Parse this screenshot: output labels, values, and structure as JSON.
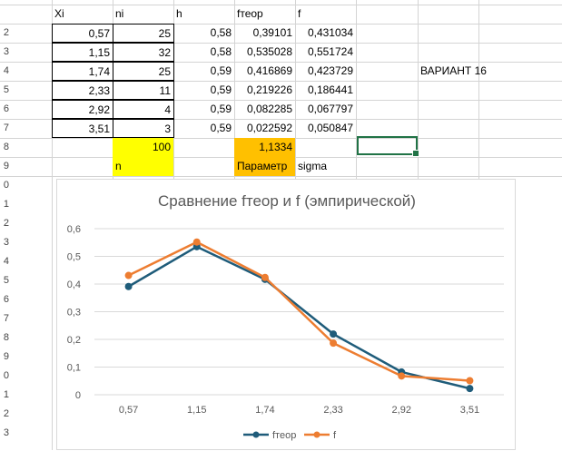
{
  "headers": {
    "xi": "Xi",
    "ni": "ni",
    "h": "h",
    "ftheor": "fтеор",
    "f": "f"
  },
  "rows": [
    {
      "xi": "0,57",
      "ni": "25",
      "h": "0,58",
      "ftheor": "0,39101",
      "f": "0,431034"
    },
    {
      "xi": "1,15",
      "ni": "32",
      "h": "0,58",
      "ftheor": "0,535028",
      "f": "0,551724"
    },
    {
      "xi": "1,74",
      "ni": "25",
      "h": "0,59",
      "ftheor": "0,416869",
      "f": "0,423729"
    },
    {
      "xi": "2,33",
      "ni": "11",
      "h": "0,59",
      "ftheor": "0,219226",
      "f": "0,186441"
    },
    {
      "xi": "2,92",
      "ni": "4",
      "h": "0,59",
      "ftheor": "0,082285",
      "f": "0,067797"
    },
    {
      "xi": "3,51",
      "ni": "3",
      "h": "0,59",
      "ftheor": "0,022592",
      "f": "0,050847"
    }
  ],
  "variant_label": "ВАРИАНТ 16",
  "sum_n": "100",
  "sigma_value": "1,1334",
  "label_n": "n",
  "label_param": "Параметр",
  "label_sigma": "sigma",
  "row_numbers": [
    "2",
    "3",
    "4",
    "5",
    "6",
    "7",
    "8",
    "9",
    "0",
    "1",
    "2",
    "3",
    "4",
    "5",
    "6",
    "7",
    "8",
    "9",
    "0",
    "1",
    "2",
    "3"
  ],
  "chart_data": {
    "type": "line",
    "title": "Сравнение fтеор и f (эмпирической)",
    "categories": [
      "0,57",
      "1,15",
      "1,74",
      "2,33",
      "2,92",
      "3,51"
    ],
    "y_ticks": [
      "0",
      "0,1",
      "0,2",
      "0,3",
      "0,4",
      "0,5",
      "0,6"
    ],
    "ylim": [
      0,
      0.6
    ],
    "grid": true,
    "legend_position": "bottom",
    "series": [
      {
        "name": "fтеор",
        "color": "#1f5c7a",
        "values": [
          0.39101,
          0.535028,
          0.416869,
          0.219226,
          0.082285,
          0.022592
        ]
      },
      {
        "name": "f",
        "color": "#ed7d31",
        "values": [
          0.431034,
          0.551724,
          0.423729,
          0.186441,
          0.067797,
          0.050847
        ]
      }
    ]
  }
}
